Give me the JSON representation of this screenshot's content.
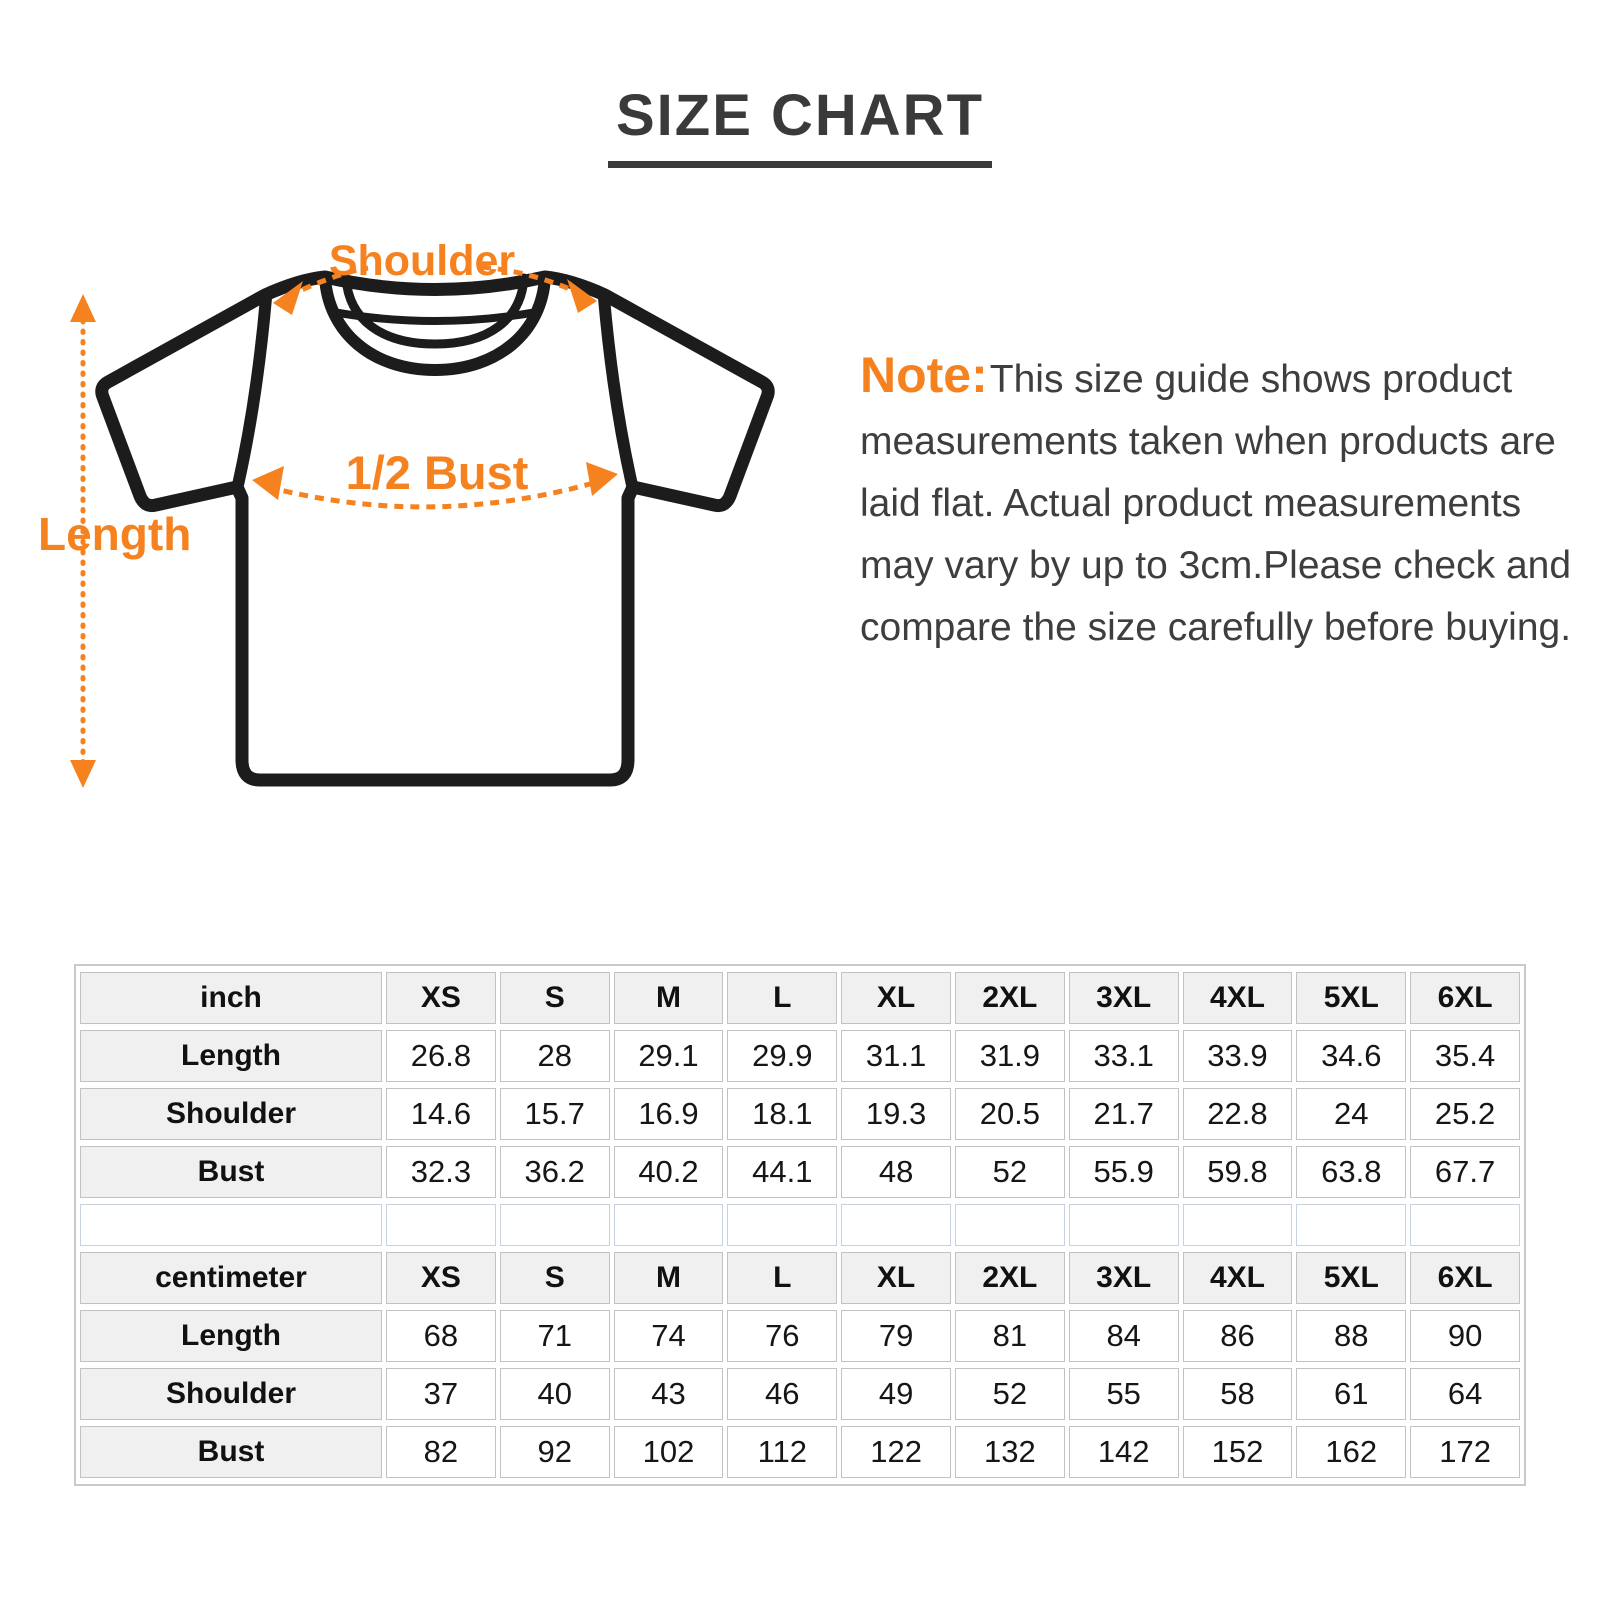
{
  "title": "SIZE CHART",
  "diagram": {
    "shoulder_label": "Shoulder",
    "bust_label": "1/2 Bust",
    "length_label": "Length",
    "accent_color": "#f5821f",
    "outline_color": "#1c1c1c"
  },
  "note": {
    "prefix": "Note:",
    "lines": [
      "This size guide shows product",
      "measurements taken when products are",
      "laid flat. Actual product measurements",
      "may vary by up to 3cm.Please check and",
      "compare the size carefully before buying."
    ]
  },
  "size_chart": {
    "columns": [
      "XS",
      "S",
      "M",
      "L",
      "XL",
      "2XL",
      "3XL",
      "4XL",
      "5XL",
      "6XL"
    ],
    "sections": [
      {
        "unit": "inch",
        "rows": [
          {
            "label": "Length",
            "values": [
              "26.8",
              "28",
              "29.1",
              "29.9",
              "31.1",
              "31.9",
              "33.1",
              "33.9",
              "34.6",
              "35.4"
            ]
          },
          {
            "label": "Shoulder",
            "values": [
              "14.6",
              "15.7",
              "16.9",
              "18.1",
              "19.3",
              "20.5",
              "21.7",
              "22.8",
              "24",
              "25.2"
            ]
          },
          {
            "label": "Bust",
            "values": [
              "32.3",
              "36.2",
              "40.2",
              "44.1",
              "48",
              "52",
              "55.9",
              "59.8",
              "63.8",
              "67.7"
            ]
          }
        ]
      },
      {
        "unit": "centimeter",
        "rows": [
          {
            "label": "Length",
            "values": [
              "68",
              "71",
              "74",
              "76",
              "79",
              "81",
              "84",
              "86",
              "88",
              "90"
            ]
          },
          {
            "label": "Shoulder",
            "values": [
              "37",
              "40",
              "43",
              "46",
              "49",
              "52",
              "55",
              "58",
              "61",
              "64"
            ]
          },
          {
            "label": "Bust",
            "values": [
              "82",
              "92",
              "102",
              "112",
              "122",
              "132",
              "142",
              "152",
              "162",
              "172"
            ]
          }
        ]
      }
    ]
  }
}
